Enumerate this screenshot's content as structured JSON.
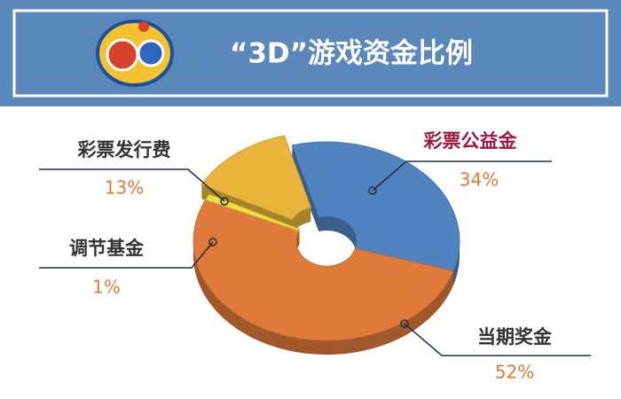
{
  "chart_data": {
    "type": "pie",
    "title": "“3D”游戏资金比例",
    "categories": [
      "彩票公益金",
      "当期奖金",
      "调节基金",
      "彩票发行费"
    ],
    "values": [
      34,
      52,
      1,
      13
    ],
    "value_labels": [
      "34%",
      "52%",
      "1%",
      "13%"
    ],
    "colors": [
      "#5083bf",
      "#e07a3a",
      "#ede03c",
      "#e8b53a"
    ]
  }
}
